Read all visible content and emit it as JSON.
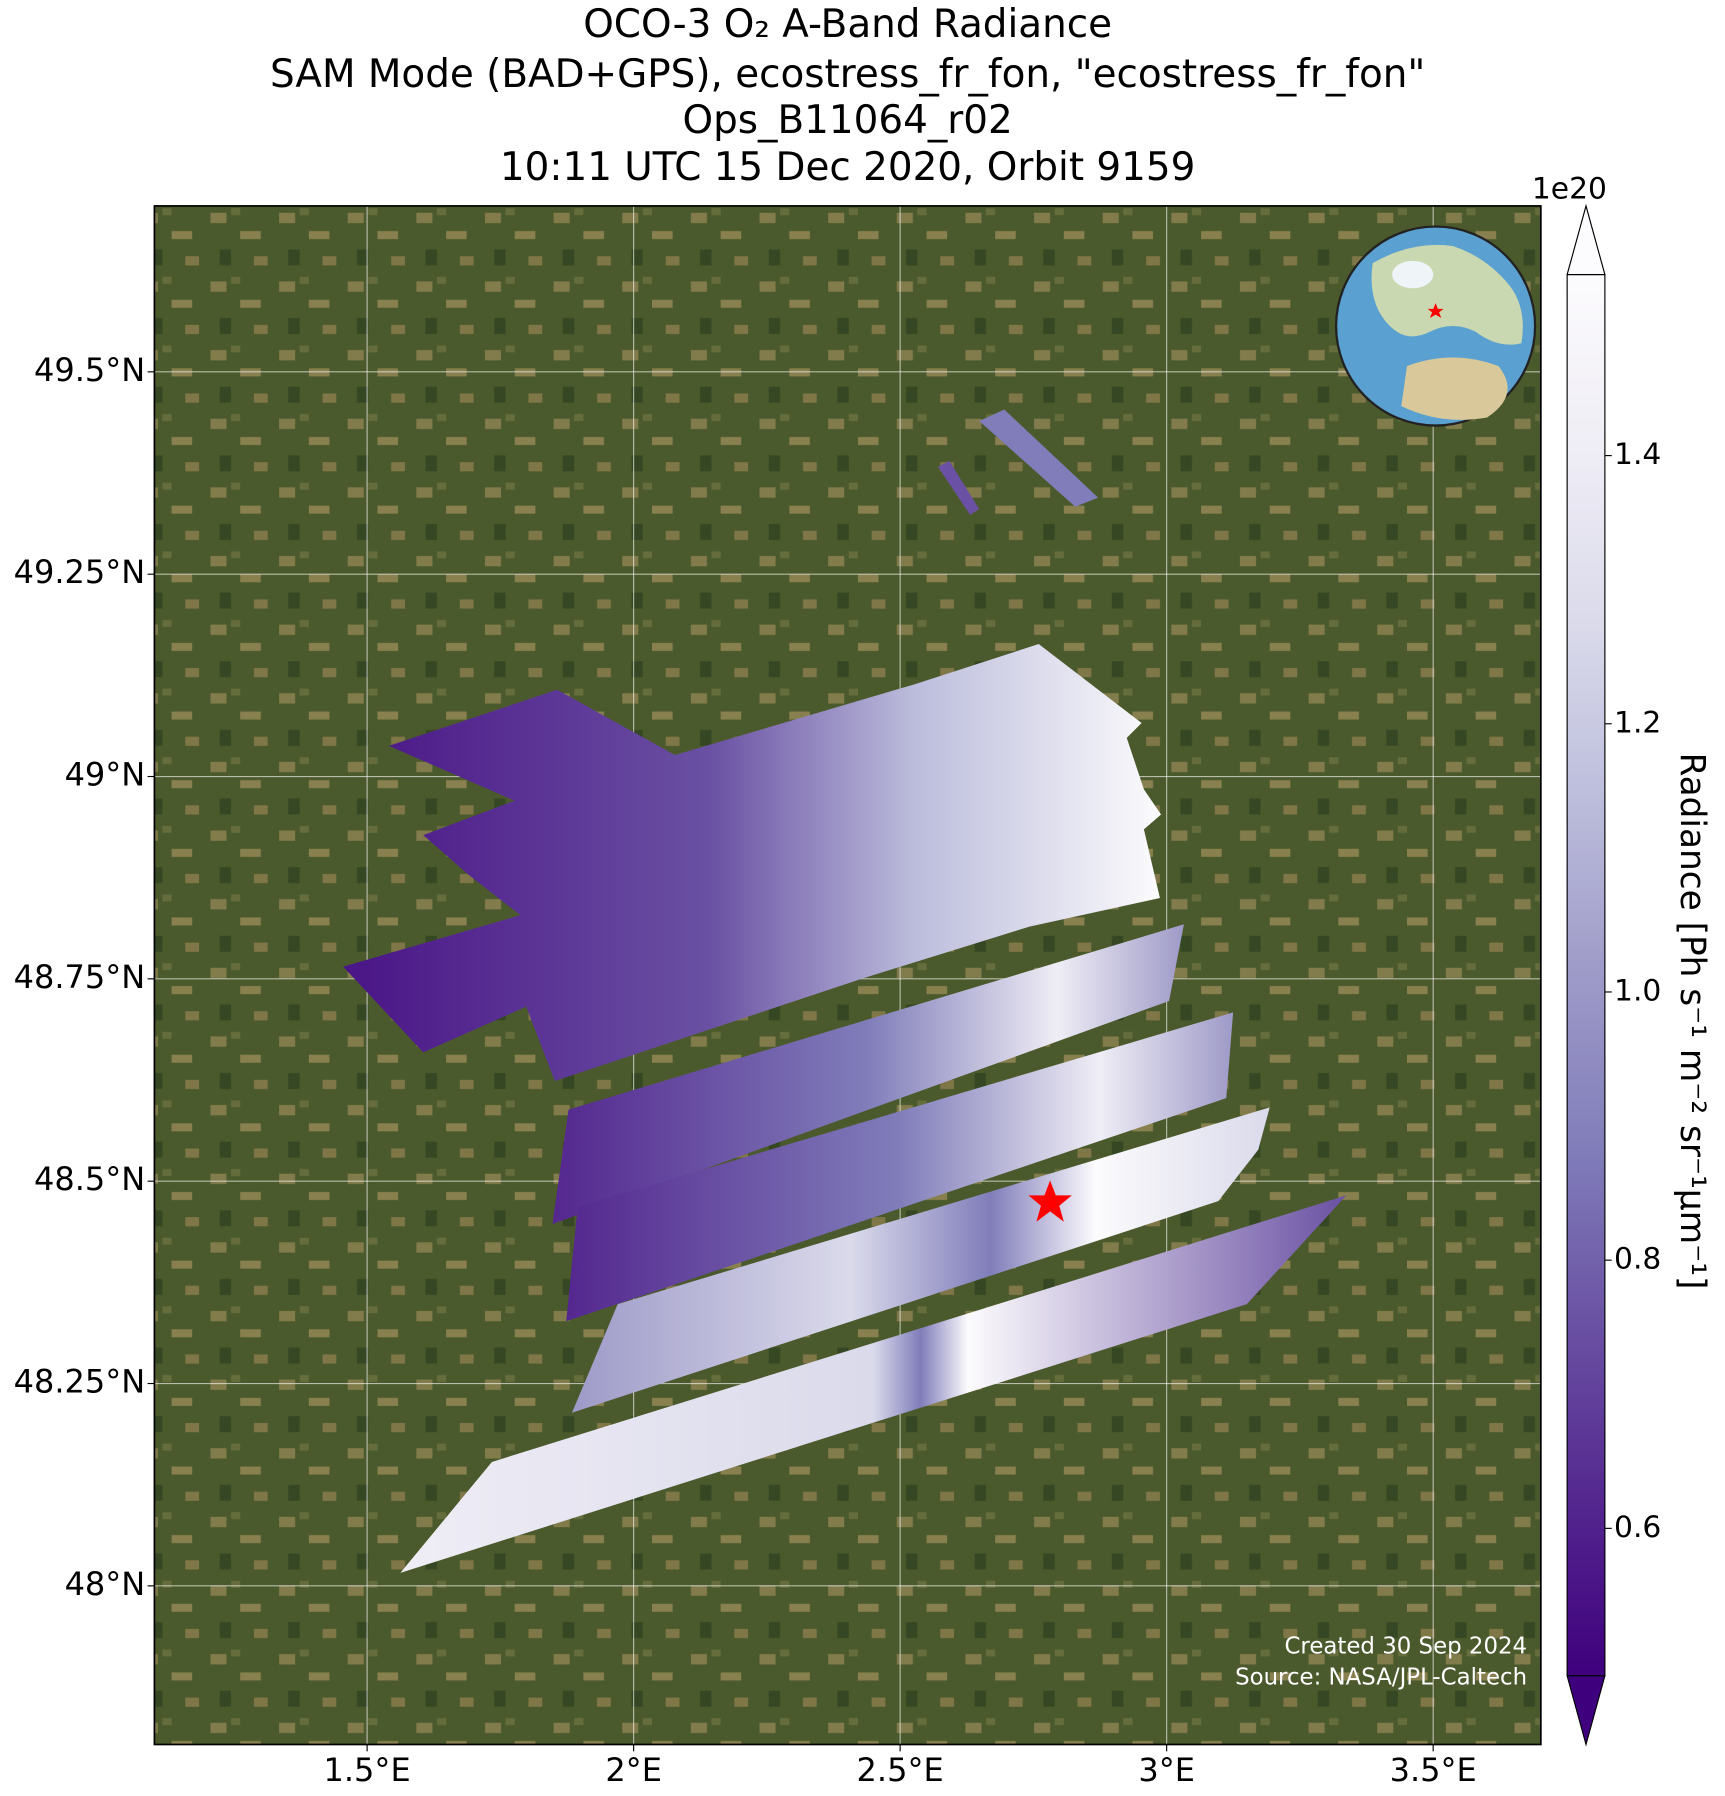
{
  "chart_data": {
    "type": "map",
    "title": [
      "OCO-3 O₂ A-Band Radiance",
      "SAM Mode (BAD+GPS), ecostress_fr_fon, \"ecostress_fr_fon\"",
      "Ops_B11064_r02",
      "10:11 UTC 15 Dec 2020, Orbit 9159"
    ],
    "xlim": [
      1.101,
      3.702
    ],
    "xticks": [
      {
        "value": 1.5,
        "label": "1.5°E"
      },
      {
        "value": 2,
        "label": "2°E"
      },
      {
        "value": 2.5,
        "label": "2.5°E"
      },
      {
        "value": 3,
        "label": "3°E"
      },
      {
        "value": 3.5,
        "label": "3.5°E"
      }
    ],
    "ylim": [
      47.804,
      49.705
    ],
    "yticks": [
      {
        "value": 49.5,
        "label": "49.5°N"
      },
      {
        "value": 49.25,
        "label": "49.25°N"
      },
      {
        "value": 49,
        "label": "49°N"
      },
      {
        "value": 48.75,
        "label": "48.75°N"
      },
      {
        "value": 48.5,
        "label": "48.5°N"
      },
      {
        "value": 48.25,
        "label": "48.25°N"
      },
      {
        "value": 48,
        "label": "48°N"
      }
    ],
    "grid": true,
    "colorbar": {
      "label": "Radiance [Ph s⁻¹ m⁻² sr⁻¹μm⁻¹]",
      "offset_text": "1e20",
      "lim": [
        0.49,
        1.535
      ],
      "ticks": [
        0.6,
        0.8,
        {
          "value": 1.0,
          "label": "1.0"
        },
        1.2,
        1.4
      ],
      "colors": [
        "#3f007d",
        "#54278f",
        "#6a51a3",
        "#807dba",
        "#9e9ac8",
        "#bcbddc",
        "#dadaeb",
        "#efedf5",
        "#fcfbfd"
      ]
    },
    "credits": [
      "Created 30 Sep 2024",
      "Source: NASA/JPL-Caltech"
    ]
  }
}
